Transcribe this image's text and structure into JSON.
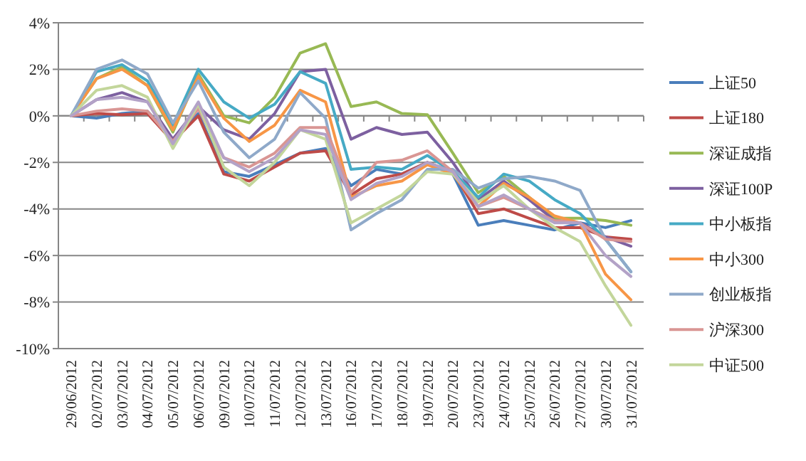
{
  "chart_data": {
    "type": "line",
    "categories": [
      "29/06/2012",
      "02/07/2012",
      "03/07/2012",
      "04/07/2012",
      "05/07/2012",
      "06/07/2012",
      "09/07/2012",
      "10/07/2012",
      "11/07/2012",
      "12/07/2012",
      "13/07/2012",
      "16/07/2012",
      "17/07/2012",
      "18/07/2012",
      "19/07/2012",
      "20/07/2012",
      "23/07/2012",
      "24/07/2012",
      "25/07/2012",
      "26/07/2012",
      "27/07/2012",
      "30/07/2012",
      "31/07/2012"
    ],
    "ylim": [
      -10,
      4
    ],
    "yticks": [
      {
        "value": -10,
        "label": "-10%"
      },
      {
        "value": -8,
        "label": "-8%"
      },
      {
        "value": -6,
        "label": "-6%"
      },
      {
        "value": -4,
        "label": "-4%"
      },
      {
        "value": -2,
        "label": "-2%"
      },
      {
        "value": 0,
        "label": "0%"
      },
      {
        "value": 2,
        "label": "2%"
      },
      {
        "value": 4,
        "label": "4%"
      }
    ],
    "grid": "y",
    "legend": "right",
    "marker": "none",
    "line_style": "solid",
    "series": [
      {
        "name": "上证50",
        "color": "#4a7ebb",
        "values": [
          0,
          -0.1,
          0.1,
          0.2,
          -1.0,
          0.1,
          -2.4,
          -2.6,
          -2.1,
          -1.6,
          -1.4,
          -3.0,
          -2.3,
          -2.5,
          -2.0,
          -2.5,
          -4.7,
          -4.5,
          -4.7,
          -4.9,
          -4.6,
          -4.8,
          -4.5
        ]
      },
      {
        "name": "上证180",
        "color": "#be4b48",
        "values": [
          0,
          0.1,
          0.05,
          0.1,
          -1.1,
          0.0,
          -2.5,
          -2.8,
          -2.2,
          -1.6,
          -1.5,
          -3.4,
          -2.7,
          -2.5,
          -2.0,
          -2.4,
          -4.2,
          -4.0,
          -4.4,
          -4.8,
          -4.8,
          -5.2,
          -5.3
        ]
      },
      {
        "name": "深证成指",
        "color": "#98b954",
        "values": [
          0,
          1.6,
          2.1,
          1.3,
          -0.7,
          1.8,
          0.0,
          -0.3,
          0.8,
          2.7,
          3.1,
          0.4,
          0.6,
          0.1,
          0.05,
          -1.6,
          -3.3,
          -2.6,
          -3.5,
          -4.4,
          -4.4,
          -4.5,
          -4.7
        ]
      },
      {
        "name": "深证100P",
        "color": "#7d60a0",
        "values": [
          0,
          0.7,
          1.0,
          0.6,
          -1.0,
          0.4,
          -0.6,
          -1.0,
          0.1,
          1.9,
          2.0,
          -1.0,
          -0.5,
          -0.8,
          -0.7,
          -2.0,
          -3.6,
          -2.8,
          -3.6,
          -4.5,
          -4.6,
          -5.2,
          -5.6
        ]
      },
      {
        "name": "中小板指",
        "color": "#46aac5",
        "values": [
          0,
          1.9,
          2.2,
          1.5,
          -0.4,
          2.0,
          0.6,
          -0.1,
          0.5,
          1.9,
          1.4,
          -2.3,
          -2.2,
          -2.3,
          -1.7,
          -2.4,
          -3.5,
          -2.5,
          -2.8,
          -3.6,
          -4.2,
          -5.3,
          -6.7
        ]
      },
      {
        "name": "中小300",
        "color": "#f79646",
        "values": [
          0,
          1.6,
          2.0,
          1.3,
          -0.6,
          1.7,
          -0.1,
          -1.1,
          -0.4,
          1.1,
          0.6,
          -3.5,
          -3.0,
          -2.8,
          -2.1,
          -2.5,
          -3.9,
          -2.9,
          -3.5,
          -4.3,
          -4.6,
          -6.8,
          -7.9
        ]
      },
      {
        "name": "创业板指",
        "color": "#8fa9c9",
        "values": [
          0,
          2.0,
          2.4,
          1.8,
          -0.3,
          1.5,
          -0.7,
          -1.8,
          -1.0,
          1.0,
          -0.1,
          -4.9,
          -4.2,
          -3.6,
          -2.3,
          -2.3,
          -3.1,
          -2.7,
          -2.6,
          -2.8,
          -3.2,
          -5.3,
          -6.7
        ]
      },
      {
        "name": "沪深300",
        "color": "#d99694",
        "values": [
          0,
          0.2,
          0.3,
          0.2,
          -1.1,
          0.3,
          -1.8,
          -2.2,
          -1.6,
          -0.5,
          -0.5,
          -3.3,
          -2.0,
          -1.9,
          -1.5,
          -2.4,
          -3.9,
          -3.5,
          -4.0,
          -4.5,
          -4.6,
          -5.3,
          -5.4
        ]
      },
      {
        "name": "中证500",
        "color": "#c3d69b",
        "values": [
          0,
          1.1,
          1.3,
          0.8,
          -1.4,
          0.5,
          -2.2,
          -3.0,
          -2.0,
          -0.6,
          -1.0,
          -4.6,
          -4.0,
          -3.4,
          -2.4,
          -2.5,
          -3.7,
          -3.0,
          -4.0,
          -4.8,
          -5.4,
          -7.3,
          -9.0
        ]
      },
      {
        "color": "#b3a2c7",
        "values": [
          0,
          0.7,
          0.8,
          0.6,
          -1.2,
          0.6,
          -1.8,
          -2.4,
          -1.8,
          -0.6,
          -0.8,
          -3.6,
          -2.9,
          -2.6,
          -2.0,
          -2.4,
          -3.9,
          -3.4,
          -4.0,
          -4.6,
          -4.6,
          -6.0,
          -6.9
        ]
      }
    ]
  }
}
